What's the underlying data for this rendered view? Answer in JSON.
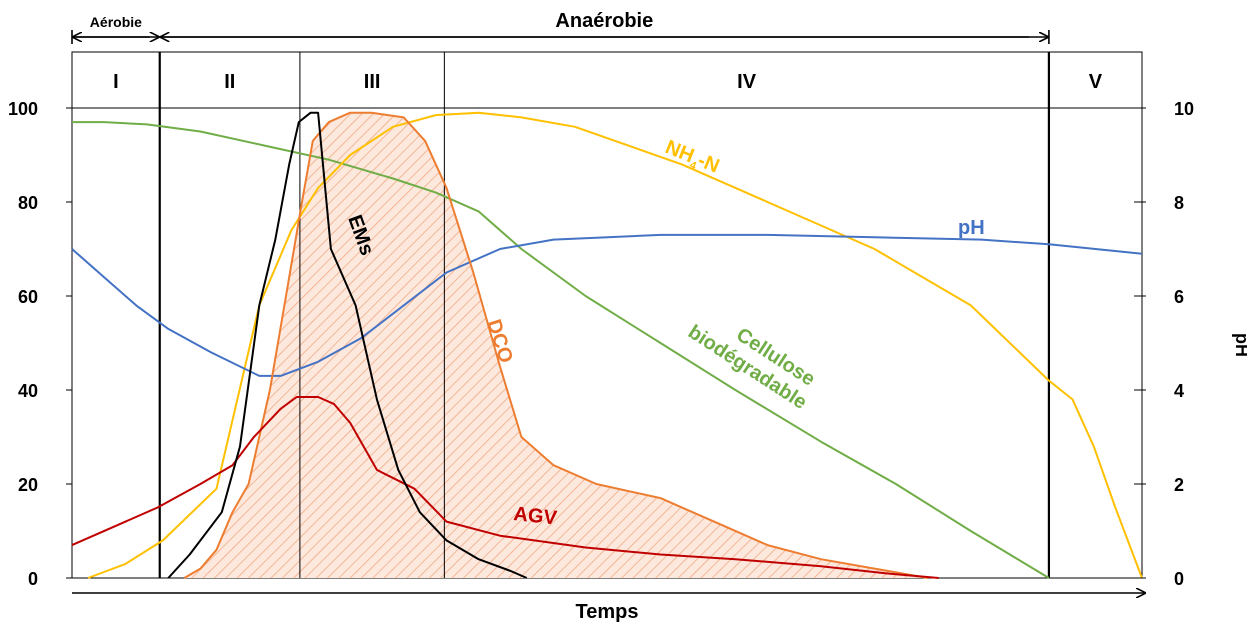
{
  "chart_data": {
    "type": "line",
    "title": "",
    "xlabel": "Temps",
    "ylabel_left": "",
    "ylabel_right": "pH",
    "xlim": [
      0,
      100
    ],
    "ylim_left": [
      0,
      100
    ],
    "ylim_right": [
      0,
      10
    ],
    "yticks_left": [
      "0",
      "20",
      "40",
      "60",
      "80",
      "100"
    ],
    "yticks_right": [
      "0",
      "2",
      "4",
      "6",
      "8",
      "10"
    ],
    "grid": false,
    "phase_boundaries": [
      8.2,
      21.3,
      34.8,
      91.3
    ],
    "phases": [
      {
        "label": "I",
        "start": 0,
        "end": 8.2
      },
      {
        "label": "II",
        "start": 8.2,
        "end": 21.3
      },
      {
        "label": "III",
        "start": 21.3,
        "end": 34.8
      },
      {
        "label": "IV",
        "start": 34.8,
        "end": 91.3
      },
      {
        "label": "V",
        "start": 91.3,
        "end": 100
      }
    ],
    "spans": {
      "aerobie": {
        "label": "Aérobie",
        "start": 0,
        "end": 8.2
      },
      "anaerobie": {
        "label": "Anaérobie",
        "start": 8.2,
        "end": 91.3
      }
    },
    "series": [
      {
        "name": "Cellulose biodégradable",
        "color": "#70ad47",
        "axis": "left",
        "points": [
          [
            0,
            97
          ],
          [
            3,
            97
          ],
          [
            7,
            96.5
          ],
          [
            12,
            95
          ],
          [
            18,
            92
          ],
          [
            24,
            89
          ],
          [
            30,
            85
          ],
          [
            34,
            82
          ],
          [
            38,
            78
          ],
          [
            42,
            70
          ],
          [
            48,
            60
          ],
          [
            55,
            50
          ],
          [
            62,
            40
          ],
          [
            70,
            29
          ],
          [
            77,
            20
          ],
          [
            84,
            10
          ],
          [
            91.3,
            0
          ]
        ]
      },
      {
        "name": "NH4-N",
        "color": "#ffc000",
        "axis": "left",
        "points": [
          [
            1.5,
            0
          ],
          [
            5,
            3
          ],
          [
            8.5,
            8
          ],
          [
            13.5,
            19
          ],
          [
            17.5,
            58
          ],
          [
            20.5,
            74
          ],
          [
            23,
            83
          ],
          [
            26,
            90
          ],
          [
            30,
            96
          ],
          [
            34,
            98.5
          ],
          [
            38,
            99
          ],
          [
            42,
            98
          ],
          [
            47,
            96
          ],
          [
            52,
            92
          ],
          [
            57,
            88
          ],
          [
            65,
            80
          ],
          [
            75,
            70
          ],
          [
            84,
            58
          ],
          [
            91.3,
            42
          ],
          [
            93.5,
            38
          ],
          [
            95.5,
            28
          ],
          [
            97.5,
            15
          ],
          [
            100,
            0
          ]
        ]
      },
      {
        "name": "pH",
        "color": "#4472c4",
        "axis": "right",
        "points": [
          [
            0,
            7.0
          ],
          [
            3,
            6.4
          ],
          [
            6,
            5.8
          ],
          [
            9,
            5.3
          ],
          [
            13,
            4.8
          ],
          [
            17.5,
            4.3
          ],
          [
            19.5,
            4.3
          ],
          [
            23,
            4.6
          ],
          [
            27,
            5.1
          ],
          [
            31,
            5.8
          ],
          [
            35,
            6.5
          ],
          [
            40,
            7.0
          ],
          [
            45,
            7.2
          ],
          [
            55,
            7.3
          ],
          [
            65,
            7.3
          ],
          [
            75,
            7.25
          ],
          [
            85,
            7.2
          ],
          [
            91.3,
            7.1
          ],
          [
            100,
            6.9
          ]
        ]
      },
      {
        "name": "AGV",
        "color": "#c00000",
        "axis": "left",
        "points": [
          [
            0,
            7
          ],
          [
            4,
            11
          ],
          [
            8,
            15
          ],
          [
            12,
            20
          ],
          [
            15,
            24
          ],
          [
            17,
            30
          ],
          [
            19.5,
            36
          ],
          [
            21,
            38.5
          ],
          [
            23,
            38.5
          ],
          [
            24.5,
            37
          ],
          [
            26,
            33
          ],
          [
            28.5,
            23
          ],
          [
            32,
            19
          ],
          [
            35,
            12
          ],
          [
            40,
            9
          ],
          [
            48,
            6.5
          ],
          [
            55,
            5
          ],
          [
            62,
            4
          ],
          [
            70,
            2.5
          ],
          [
            76,
            1
          ],
          [
            81,
            0
          ]
        ]
      },
      {
        "name": "EMs",
        "color": "#000000",
        "axis": "left",
        "points": [
          [
            9,
            0
          ],
          [
            11,
            5
          ],
          [
            14,
            14
          ],
          [
            15.7,
            28
          ],
          [
            17.5,
            58
          ],
          [
            19,
            72
          ],
          [
            20.3,
            88
          ],
          [
            21.2,
            97
          ],
          [
            22.3,
            99
          ],
          [
            23,
            99
          ],
          [
            24.2,
            70
          ],
          [
            26.5,
            58
          ],
          [
            28.5,
            38
          ],
          [
            30.5,
            23
          ],
          [
            32.5,
            14
          ],
          [
            35,
            8
          ],
          [
            38,
            4
          ],
          [
            41,
            1.5
          ],
          [
            42.5,
            0
          ]
        ]
      },
      {
        "name": "DCO",
        "color": "#ed7d31",
        "axis": "left",
        "fill": true,
        "points": [
          [
            10.5,
            0
          ],
          [
            12,
            2
          ],
          [
            13.5,
            6
          ],
          [
            15,
            14
          ],
          [
            16.5,
            20
          ],
          [
            18.5,
            40
          ],
          [
            20,
            60
          ],
          [
            21.5,
            80
          ],
          [
            22.5,
            93
          ],
          [
            24,
            97
          ],
          [
            26,
            99
          ],
          [
            28,
            99
          ],
          [
            31,
            98
          ],
          [
            33,
            93
          ],
          [
            35,
            83
          ],
          [
            37.5,
            65
          ],
          [
            40,
            45
          ],
          [
            42,
            30
          ],
          [
            45,
            24
          ],
          [
            49,
            20
          ],
          [
            55,
            17
          ],
          [
            60,
            12
          ],
          [
            65,
            7
          ],
          [
            70,
            4
          ],
          [
            75,
            2
          ],
          [
            80,
            0
          ]
        ]
      }
    ]
  }
}
